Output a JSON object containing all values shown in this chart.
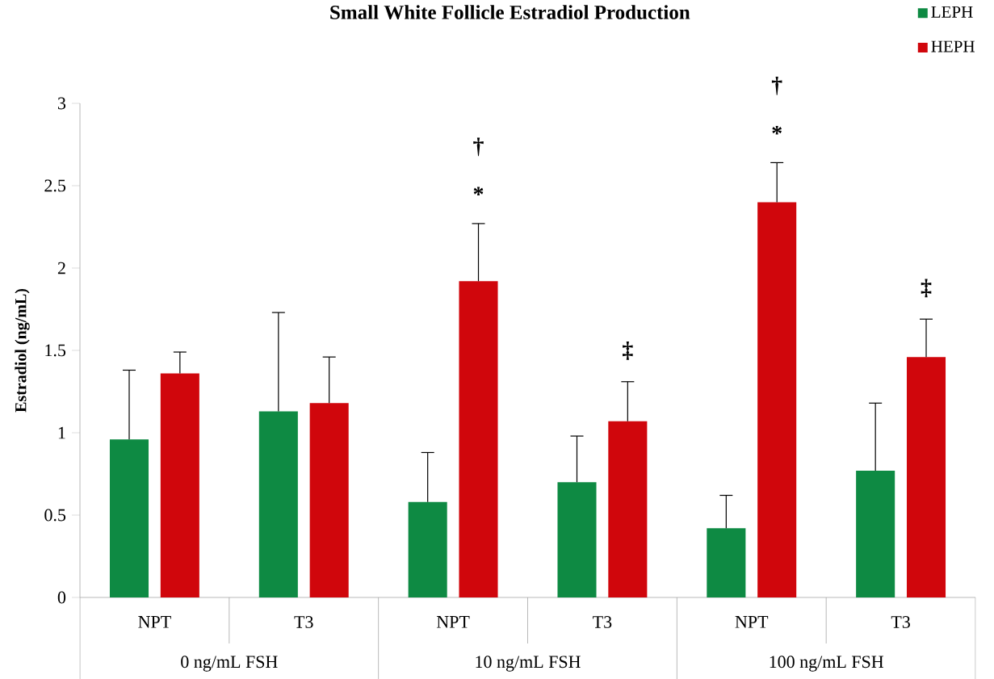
{
  "chart_data": {
    "type": "bar",
    "title": "Small White Follicle Estradiol Production",
    "ylabel": "Estradiol (ng/mL)",
    "categories": [
      "NPT",
      "T3",
      "NPT",
      "T3",
      "NPT",
      "T3"
    ],
    "series": [
      {
        "name": "LEPH",
        "color": "#0e8a43",
        "values": [
          0.96,
          1.13,
          0.58,
          0.7,
          0.42,
          0.77
        ],
        "errors": [
          [
            0.96,
            1.38
          ],
          [
            1.13,
            1.73
          ],
          [
            0.58,
            0.88
          ],
          [
            0.7,
            0.98
          ],
          [
            0.42,
            0.62
          ],
          [
            0.77,
            1.18
          ]
        ]
      },
      {
        "name": "HEPH",
        "color": "#d0060c",
        "values": [
          1.36,
          1.18,
          1.92,
          1.07,
          2.4,
          1.46
        ],
        "errors": [
          [
            1.36,
            1.49
          ],
          [
            1.18,
            1.46
          ],
          [
            1.92,
            2.27
          ],
          [
            1.07,
            1.31
          ],
          [
            2.4,
            2.64
          ],
          [
            1.46,
            1.69
          ]
        ],
        "value_labels": [
          null,
          null,
          "† *",
          "‡",
          "† *",
          "‡"
        ]
      }
    ],
    "ylim": [
      0,
      3
    ],
    "yticks": [
      0,
      0.5,
      1,
      1.5,
      2,
      2.5,
      3
    ],
    "legend": "top right",
    "annotations": [
      "0 ng/mL FSH",
      "10 ng/mL FSH",
      "100 ng/mL FSH"
    ]
  }
}
